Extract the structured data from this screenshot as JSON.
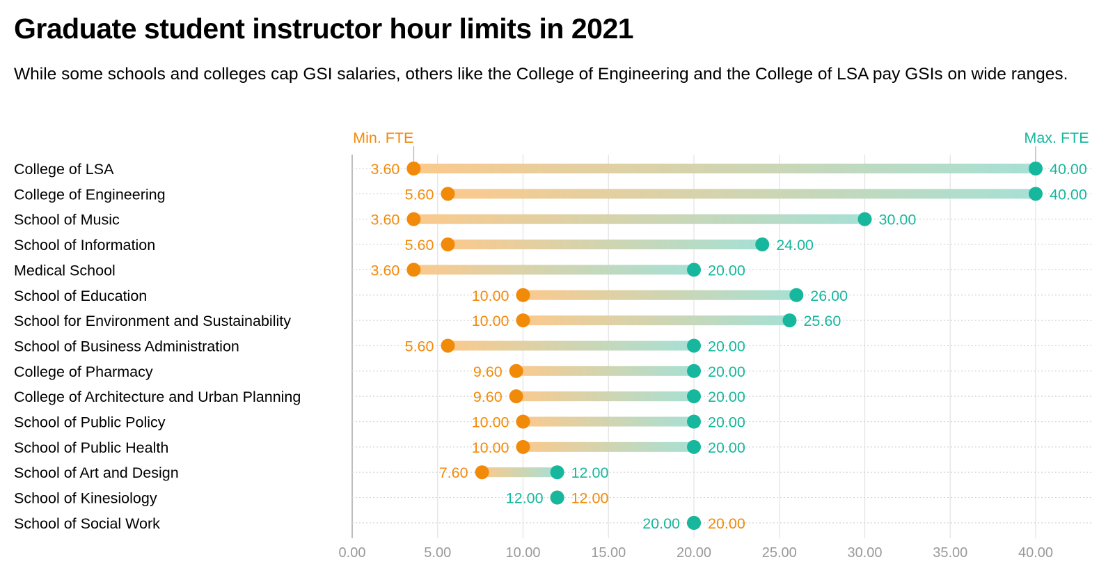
{
  "title": "Graduate student instructor hour limits in 2021",
  "subtitle": "While some schools and colleges cap GSI salaries, others like the College of Engineering and the College of LSA pay GSIs on wide ranges.",
  "colors": {
    "min": "#f28a09",
    "max": "#16b79d",
    "grid": "#e2e2e2",
    "axis": "#bdbdbd",
    "tick": "#999999"
  },
  "chart_data": {
    "type": "dumbbell",
    "title": "Graduate student instructor hour limits in 2021",
    "series_labels": {
      "min": "Min. FTE",
      "max": "Max. FTE"
    },
    "xlim": [
      0,
      40
    ],
    "xticks": [
      0,
      5,
      10,
      15,
      20,
      25,
      30,
      35,
      40
    ],
    "xtick_labels": [
      "0.00",
      "5.00",
      "10.00",
      "15.00",
      "20.00",
      "25.00",
      "30.00",
      "35.00",
      "40.00"
    ],
    "rows": [
      {
        "name": "College of LSA",
        "min": 3.6,
        "max": 40,
        "min_label": "3.60",
        "max_label": "40.00"
      },
      {
        "name": "College of Engineering",
        "min": 5.6,
        "max": 40,
        "min_label": "5.60",
        "max_label": "40.00"
      },
      {
        "name": "School of Music",
        "min": 3.6,
        "max": 30,
        "min_label": "3.60",
        "max_label": "30.00"
      },
      {
        "name": "School of Information",
        "min": 5.6,
        "max": 24,
        "min_label": "5.60",
        "max_label": "24.00"
      },
      {
        "name": "Medical School",
        "min": 3.6,
        "max": 20,
        "min_label": "3.60",
        "max_label": "20.00"
      },
      {
        "name": "School of Education",
        "min": 10,
        "max": 26,
        "min_label": "10.00",
        "max_label": "26.00"
      },
      {
        "name": "School for Environment and Sustainability",
        "min": 10,
        "max": 25.6,
        "min_label": "10.00",
        "max_label": "25.60"
      },
      {
        "name": "School of Business Administration",
        "min": 5.6,
        "max": 20,
        "min_label": "5.60",
        "max_label": "20.00"
      },
      {
        "name": "College of Pharmacy",
        "min": 9.6,
        "max": 20,
        "min_label": "9.60",
        "max_label": "20.00"
      },
      {
        "name": "College of Architecture and Urban Planning",
        "min": 9.6,
        "max": 20,
        "min_label": "9.60",
        "max_label": "20.00"
      },
      {
        "name": "School of Public Policy",
        "min": 10,
        "max": 20,
        "min_label": "10.00",
        "max_label": "20.00"
      },
      {
        "name": "School of Public Health",
        "min": 10,
        "max": 20,
        "min_label": "10.00",
        "max_label": "20.00"
      },
      {
        "name": "School of Art and Design",
        "min": 7.6,
        "max": 12,
        "min_label": "7.60",
        "max_label": "12.00"
      },
      {
        "name": "School of Kinesiology",
        "min": 12,
        "max": 12,
        "min_label": "12.00",
        "max_label": "12.00"
      },
      {
        "name": "School of Social Work",
        "min": 20,
        "max": 20,
        "min_label": "20.00",
        "max_label": "20.00"
      }
    ]
  }
}
